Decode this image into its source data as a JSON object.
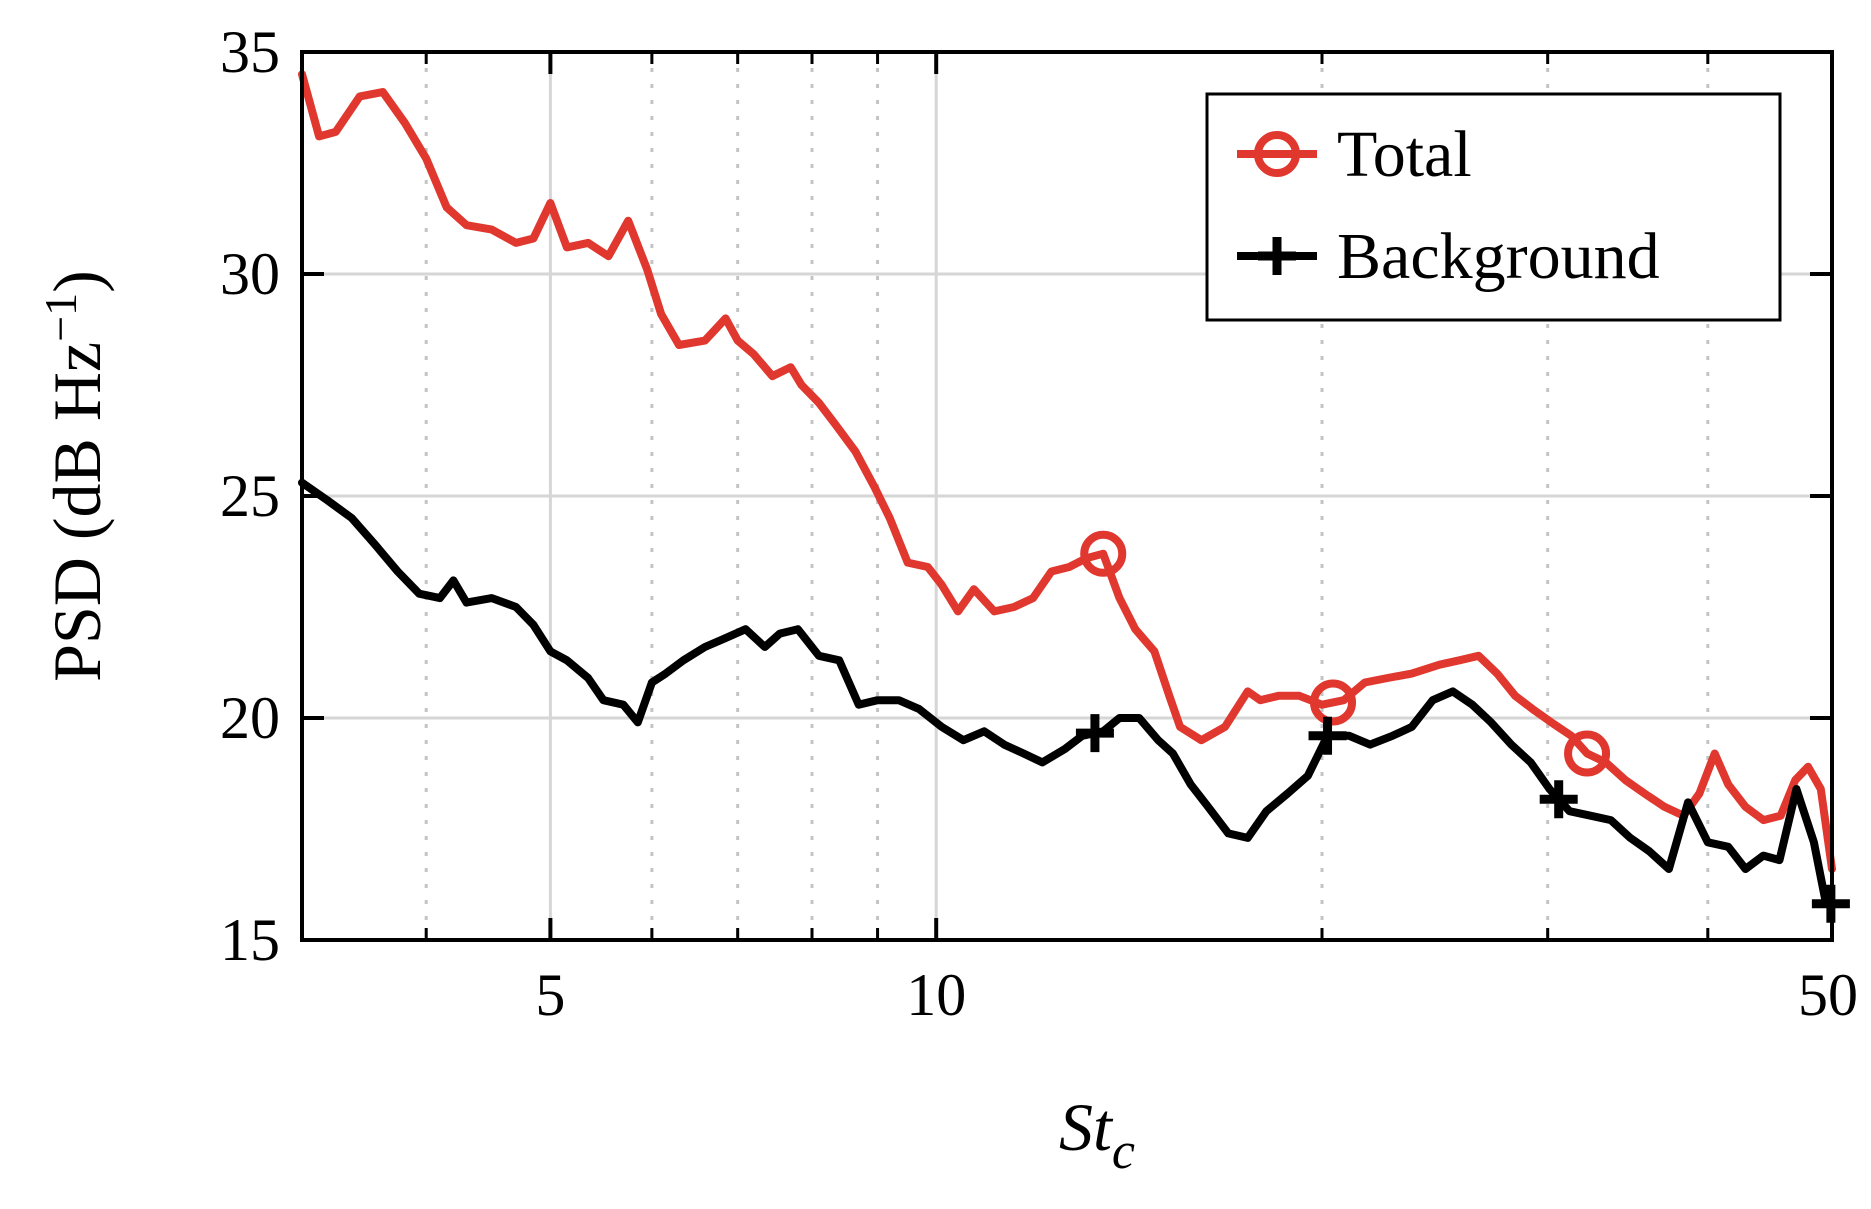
{
  "chart_data": {
    "type": "line",
    "xscale": "log",
    "xlim": [
      3.2,
      50
    ],
    "ylim": [
      15,
      35
    ],
    "grid": true,
    "legend_position": "top-right",
    "xlabel": "St",
    "xlabel_sub": "c",
    "ylabel": "PSD (dB Hz",
    "ylabel_sup": "−1",
    "ylabel_end": ")",
    "x_ticks": [
      {
        "value": 5,
        "label": "5"
      },
      {
        "value": 10,
        "label": "10"
      },
      {
        "value": 50,
        "label": "50"
      }
    ],
    "x_minor": [
      4,
      6,
      7,
      8,
      9,
      20,
      30,
      40
    ],
    "y_ticks": [
      {
        "value": 15,
        "label": "15"
      },
      {
        "value": 20,
        "label": "20"
      },
      {
        "value": 25,
        "label": "25"
      },
      {
        "value": 30,
        "label": "30"
      },
      {
        "value": 35,
        "label": "35"
      }
    ],
    "series": [
      {
        "name": "Total",
        "color": "#e0372e",
        "marker": "circle",
        "markers_at": [
          13.5,
          20.4,
          32.2
        ],
        "x": [
          3.2,
          3.3,
          3.4,
          3.55,
          3.7,
          3.85,
          4.0,
          4.15,
          4.3,
          4.5,
          4.7,
          4.85,
          5.0,
          5.15,
          5.35,
          5.55,
          5.75,
          5.95,
          6.1,
          6.3,
          6.6,
          6.85,
          7.0,
          7.2,
          7.45,
          7.7,
          7.85,
          8.1,
          8.35,
          8.65,
          8.95,
          9.2,
          9.5,
          9.85,
          10.1,
          10.4,
          10.7,
          11.1,
          11.5,
          11.9,
          12.3,
          12.7,
          13.1,
          13.5,
          13.9,
          14.3,
          14.8,
          15.2,
          15.5,
          16.1,
          16.8,
          17.5,
          17.9,
          18.5,
          19.2,
          20.0,
          20.8,
          21.6,
          22.5,
          23.5,
          24.7,
          25.6,
          26.5,
          27.4,
          28.3,
          29.2,
          30.2,
          31.3,
          32.2,
          33.3,
          34.5,
          35.7,
          37.0,
          38.3,
          39.4,
          40.5,
          41.5,
          42.8,
          44.2,
          45.6,
          46.8,
          47.9,
          49.0,
          50.0
        ],
        "y": [
          34.5,
          33.1,
          33.2,
          34.0,
          34.1,
          33.4,
          32.6,
          31.5,
          31.1,
          31.0,
          30.7,
          30.8,
          31.6,
          30.6,
          30.7,
          30.4,
          31.2,
          30.1,
          29.1,
          28.4,
          28.5,
          29.0,
          28.5,
          28.2,
          27.7,
          27.9,
          27.5,
          27.1,
          26.6,
          26.0,
          25.2,
          24.5,
          23.5,
          23.4,
          23.0,
          22.4,
          22.9,
          22.4,
          22.5,
          22.7,
          23.3,
          23.4,
          23.6,
          23.7,
          22.7,
          22.0,
          21.5,
          20.5,
          19.8,
          19.5,
          19.8,
          20.6,
          20.4,
          20.5,
          20.5,
          20.3,
          20.4,
          20.8,
          20.9,
          21.0,
          21.2,
          21.3,
          21.4,
          21.0,
          20.5,
          20.2,
          19.9,
          19.6,
          19.2,
          19.0,
          18.6,
          18.3,
          18.0,
          17.8,
          18.3,
          19.2,
          18.5,
          18.0,
          17.7,
          17.8,
          18.6,
          18.9,
          18.4,
          16.6
        ]
      },
      {
        "name": "Background",
        "color": "#000000",
        "marker": "plus",
        "markers_at": [
          13.3,
          20.2,
          30.6,
          49.9
        ],
        "x": [
          3.2,
          3.35,
          3.5,
          3.65,
          3.8,
          3.95,
          4.1,
          4.2,
          4.3,
          4.5,
          4.7,
          4.85,
          5.0,
          5.15,
          5.35,
          5.5,
          5.7,
          5.85,
          6.0,
          6.15,
          6.35,
          6.6,
          6.85,
          7.1,
          7.35,
          7.55,
          7.8,
          8.1,
          8.4,
          8.7,
          9.0,
          9.35,
          9.7,
          10.1,
          10.5,
          10.9,
          11.3,
          11.7,
          12.1,
          12.6,
          13.0,
          13.5,
          13.9,
          14.4,
          14.9,
          15.3,
          15.8,
          16.3,
          16.9,
          17.5,
          18.1,
          18.8,
          19.5,
          20.2,
          21.0,
          21.8,
          22.7,
          23.5,
          24.4,
          25.3,
          26.2,
          27.1,
          28.1,
          29.1,
          30.1,
          31.2,
          32.4,
          33.6,
          34.8,
          36.0,
          37.3,
          38.6,
          40.0,
          41.5,
          42.8,
          44.2,
          45.5,
          46.9,
          48.4,
          49.4,
          50.0
        ],
        "y": [
          25.3,
          24.9,
          24.5,
          23.9,
          23.3,
          22.8,
          22.7,
          23.1,
          22.6,
          22.7,
          22.5,
          22.1,
          21.5,
          21.3,
          20.9,
          20.4,
          20.3,
          19.9,
          20.8,
          21.0,
          21.3,
          21.6,
          21.8,
          22.0,
          21.6,
          21.9,
          22.0,
          21.4,
          21.3,
          20.3,
          20.4,
          20.4,
          20.2,
          19.8,
          19.5,
          19.7,
          19.4,
          19.2,
          19.0,
          19.3,
          19.6,
          19.7,
          20.0,
          20.0,
          19.5,
          19.2,
          18.5,
          18.0,
          17.4,
          17.3,
          17.9,
          18.3,
          18.7,
          19.6,
          19.6,
          19.4,
          19.6,
          19.8,
          20.4,
          20.6,
          20.3,
          19.9,
          19.4,
          19.0,
          18.4,
          17.9,
          17.8,
          17.7,
          17.3,
          17.0,
          16.6,
          18.1,
          17.2,
          17.1,
          16.6,
          16.9,
          16.8,
          18.4,
          17.2,
          15.9,
          15.8
        ]
      }
    ]
  }
}
